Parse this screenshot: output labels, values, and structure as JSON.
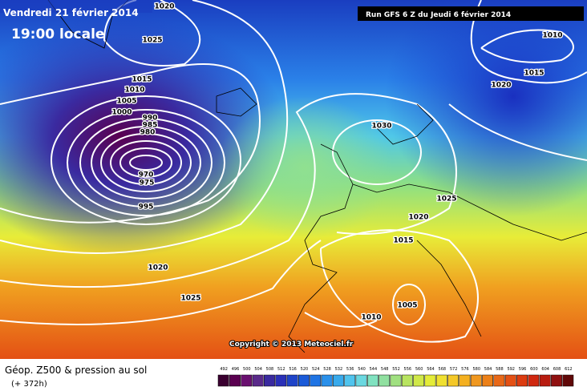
{
  "header": {
    "date": "Vendredi 21 février 2014",
    "time": "19:00 locale",
    "run": "Run GFS 6 Z du Jeudi 6 février 2014"
  },
  "copyright": "Copyright © 2013 Meteociel.fr",
  "footer": {
    "title": "Géop. Z500 & pression au sol",
    "lead": "(+ 372h)"
  },
  "isobars": [
    1020,
    1025,
    1015,
    1010,
    1005,
    1000,
    990,
    985,
    980,
    970,
    975,
    995,
    1030,
    1025,
    1020,
    1015,
    1010,
    1015,
    1020,
    1020,
    1025,
    1010,
    1005
  ],
  "legend": {
    "labels": [
      492,
      496,
      500,
      504,
      508,
      512,
      516,
      520,
      524,
      528,
      532,
      536,
      540,
      544,
      548,
      552,
      556,
      560,
      564,
      568,
      572,
      576,
      580,
      584,
      588,
      592,
      596,
      600,
      604,
      608,
      612
    ],
    "colors": [
      "#3a0030",
      "#5a0050",
      "#6a1070",
      "#5a2a8a",
      "#3a2aa0",
      "#2a30b8",
      "#1f44c8",
      "#1a5ad8",
      "#1f74e4",
      "#2a90ea",
      "#38aaec",
      "#50c4ee",
      "#6ad8e0",
      "#80e2c0",
      "#90e0a0",
      "#a0e080",
      "#b8e460",
      "#d0e848",
      "#e4ec38",
      "#f0e030",
      "#f4c828",
      "#f4b020",
      "#f09820",
      "#ec8018",
      "#e86818",
      "#e45014",
      "#dc3c10",
      "#d02810",
      "#b81c10",
      "#901010",
      "#600808"
    ]
  }
}
